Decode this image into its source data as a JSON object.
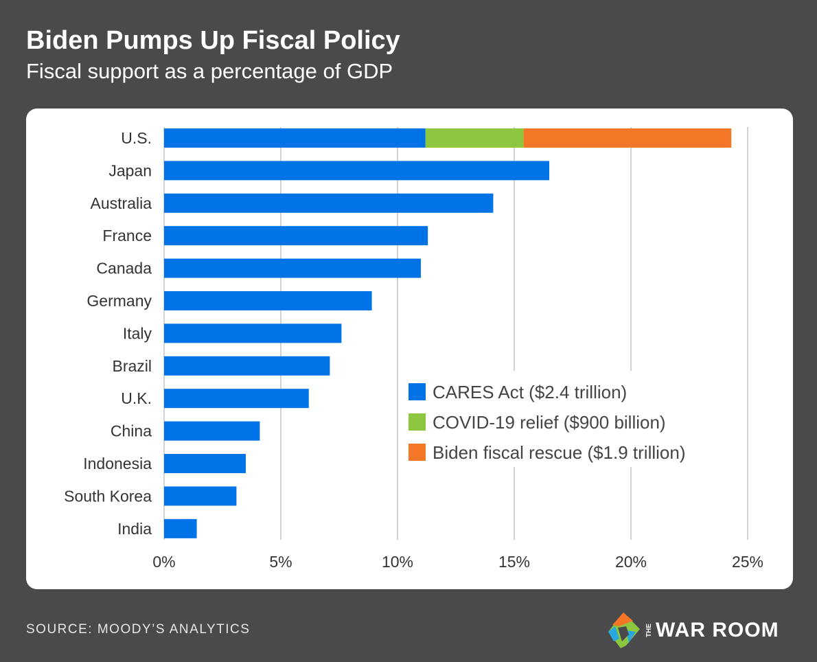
{
  "header": {
    "title": "Biden Pumps Up Fiscal Policy",
    "subtitle": "Fiscal support as a percentage of GDP"
  },
  "footer": {
    "source": "SOURCE: MOODY’S ANALYTICS",
    "logo_small": "THE",
    "logo": "WAR ROOM"
  },
  "chart_data": {
    "type": "bar",
    "orientation": "horizontal",
    "stacked": true,
    "categories": [
      "U.S.",
      "Japan",
      "Australia",
      "France",
      "Canada",
      "Germany",
      "Italy",
      "Brazil",
      "U.K.",
      "China",
      "Indonesia",
      "South Korea",
      "India"
    ],
    "series": [
      {
        "name": "CARES Act ($2.4 trillion)",
        "color": "#0073e6",
        "values": [
          11.2,
          16.5,
          14.1,
          11.3,
          11.0,
          8.9,
          7.6,
          7.1,
          6.2,
          4.1,
          3.5,
          3.1,
          1.4
        ]
      },
      {
        "name": "COVID-19 relief ($900 billion)",
        "color": "#8dc63f",
        "values": [
          4.2,
          0,
          0,
          0,
          0,
          0,
          0,
          0,
          0,
          0,
          0,
          0,
          0
        ]
      },
      {
        "name": "Biden fiscal rescue ($1.9 trillion)",
        "color": "#f37726",
        "values": [
          8.9,
          0,
          0,
          0,
          0,
          0,
          0,
          0,
          0,
          0,
          0,
          0,
          0
        ]
      }
    ],
    "xlim": [
      0,
      25
    ],
    "xticks": [
      "0%",
      "5%",
      "10%",
      "15%",
      "20%",
      "25%"
    ],
    "grid": true,
    "legend": "bottom-right"
  }
}
